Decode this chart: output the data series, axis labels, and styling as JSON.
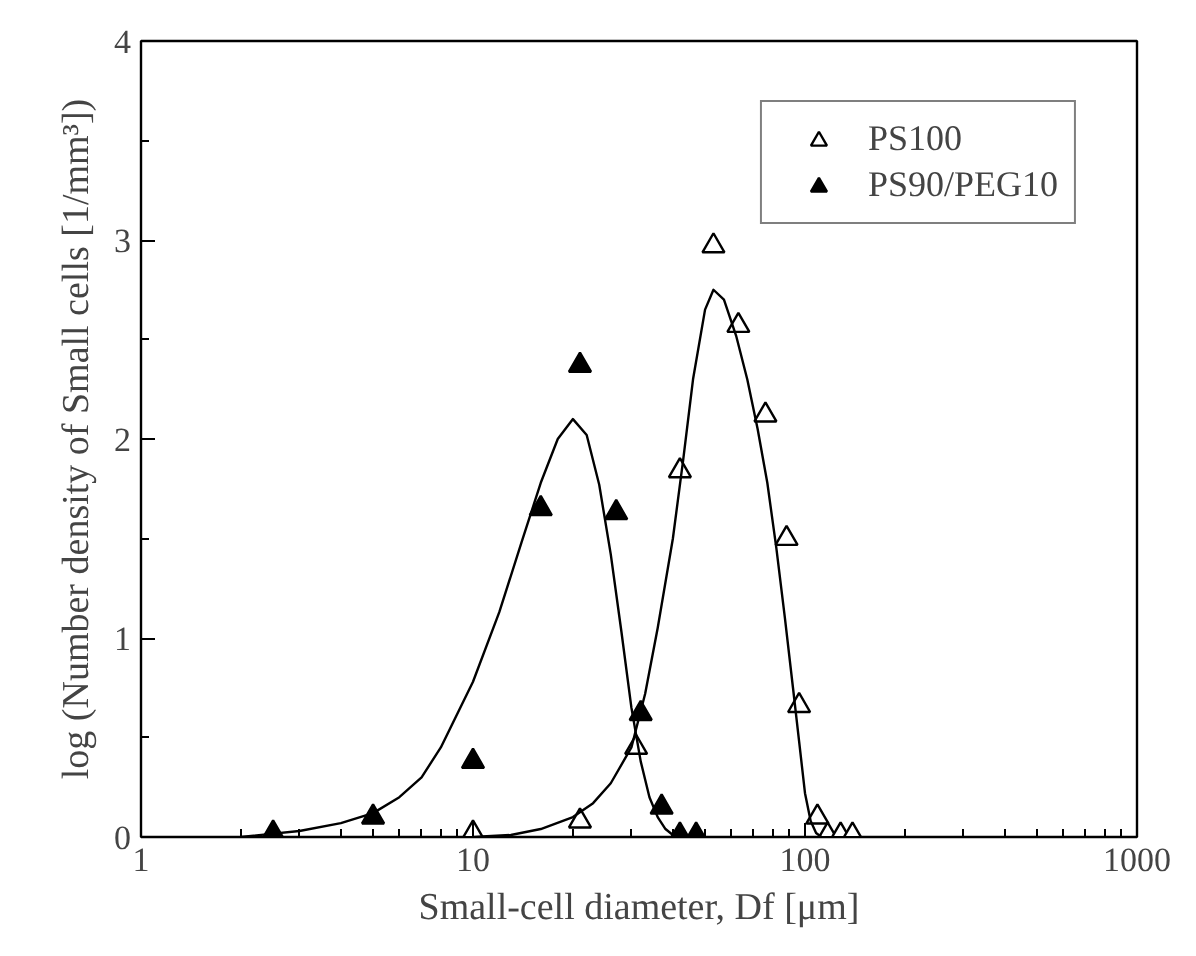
{
  "chart_data": {
    "type": "scatter",
    "xlabel": "Small-cell diameter, Df [μm]",
    "ylabel": "log (Number density of Small cells [1/mm³])",
    "log": "x",
    "xlim": [
      1,
      1000
    ],
    "xticks": [
      1,
      10,
      100,
      1000
    ],
    "ylim": [
      0,
      4
    ],
    "yticks": [
      0,
      1,
      2,
      3,
      4,
      {
        "value": 0.5,
        "label": null
      },
      {
        "value": 1.5,
        "label": null
      },
      {
        "value": 2.5,
        "label": null
      },
      {
        "value": 3.5,
        "label": null
      }
    ],
    "grid": false,
    "legend": "top right",
    "series": [
      {
        "name": "PS100",
        "color": "#ffffff",
        "marker": "triangle",
        "x": [
          10,
          21,
          31,
          42,
          53,
          63,
          76,
          88,
          96,
          109,
          117,
          128,
          139
        ],
        "values": [
          0.02,
          0.08,
          0.45,
          1.84,
          2.97,
          2.57,
          2.12,
          1.5,
          0.66,
          0.1,
          0.01,
          0.01,
          0.01
        ]
      },
      {
        "name": "PS90/PEG10",
        "color": "#000000",
        "marker": "triangle",
        "x": [
          2.5,
          5,
          10,
          16,
          21,
          27,
          32,
          37,
          42,
          47
        ],
        "values": [
          0.02,
          0.1,
          0.38,
          1.65,
          2.37,
          1.63,
          0.62,
          0.15,
          0.01,
          0.01
        ]
      },
      {
        "type": "line",
        "color": "#000000",
        "x": [
          10,
          13,
          16,
          20,
          23,
          26,
          30,
          33,
          36,
          40,
          43,
          46,
          50,
          53,
          57,
          62,
          67,
          72,
          77,
          82,
          87,
          92,
          96,
          100,
          104,
          108,
          112
        ],
        "values": [
          0.0,
          0.01,
          0.04,
          0.1,
          0.17,
          0.27,
          0.45,
          0.72,
          1.05,
          1.5,
          1.9,
          2.3,
          2.65,
          2.75,
          2.7,
          2.52,
          2.3,
          2.05,
          1.78,
          1.45,
          1.1,
          0.75,
          0.48,
          0.22,
          0.08,
          0.02,
          0.0
        ]
      },
      {
        "type": "line",
        "color": "#000000",
        "x": [
          2,
          3,
          4,
          5,
          6,
          7,
          8,
          10,
          12,
          14,
          16,
          18,
          20,
          22,
          24,
          26,
          28,
          30,
          32,
          34,
          36,
          38,
          40,
          44
        ],
        "values": [
          0.0,
          0.03,
          0.07,
          0.12,
          0.2,
          0.3,
          0.45,
          0.78,
          1.13,
          1.48,
          1.78,
          2.0,
          2.1,
          2.02,
          1.77,
          1.42,
          1.03,
          0.65,
          0.38,
          0.2,
          0.1,
          0.04,
          0.01,
          0.0
        ]
      }
    ]
  }
}
